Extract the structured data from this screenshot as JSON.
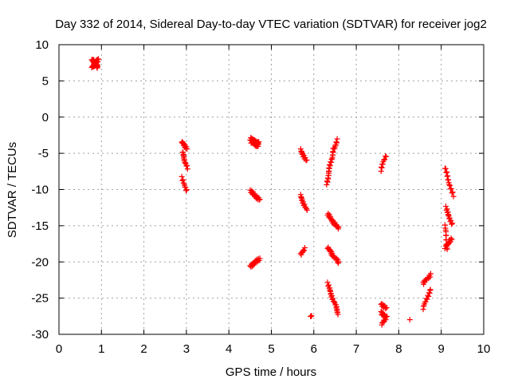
{
  "chart_data": {
    "type": "scatter",
    "title": "Day 332 of 2014, Sidereal Day-to-day VTEC variation (SDTVAR) for receiver jog2",
    "xlabel": "GPS time / hours",
    "ylabel": "SDTVAR / TECUs",
    "xlim": [
      0,
      10
    ],
    "ylim": [
      -30,
      10
    ],
    "xticks": [
      "0",
      "1",
      "2",
      "3",
      "4",
      "5",
      "6",
      "7",
      "8",
      "9",
      "10"
    ],
    "yticks": [
      "10",
      "5",
      "0",
      "-5",
      "-10",
      "-15",
      "-20",
      "-25",
      "-30"
    ],
    "grid": true,
    "marker": "+",
    "color": "#ff0000",
    "segments": [
      {
        "from": [
          0.78,
          7.9
        ],
        "to": [
          0.92,
          6.9
        ],
        "n": 30
      },
      {
        "from": [
          0.78,
          6.9
        ],
        "to": [
          0.92,
          7.9
        ],
        "n": 20
      },
      {
        "from": [
          2.88,
          -3.4
        ],
        "to": [
          3.02,
          -4.3
        ],
        "n": 12
      },
      {
        "from": [
          2.9,
          -4.8
        ],
        "to": [
          3.02,
          -7.0
        ],
        "n": 14
      },
      {
        "from": [
          2.88,
          -8.4
        ],
        "to": [
          3.02,
          -10.2
        ],
        "n": 10
      },
      {
        "from": [
          4.5,
          -3.0
        ],
        "to": [
          4.7,
          -3.6
        ],
        "n": 22
      },
      {
        "from": [
          4.52,
          -3.5
        ],
        "to": [
          4.7,
          -4.0
        ],
        "n": 12
      },
      {
        "from": [
          4.5,
          -10.2
        ],
        "to": [
          4.72,
          -11.4
        ],
        "n": 18
      },
      {
        "from": [
          4.5,
          -20.6
        ],
        "to": [
          4.72,
          -19.6
        ],
        "n": 18
      },
      {
        "from": [
          5.68,
          -4.5
        ],
        "to": [
          5.83,
          -6.0
        ],
        "n": 12
      },
      {
        "from": [
          5.68,
          -10.8
        ],
        "to": [
          5.83,
          -12.8
        ],
        "n": 14
      },
      {
        "from": [
          5.68,
          -19.0
        ],
        "to": [
          5.8,
          -18.2
        ],
        "n": 8
      },
      {
        "from": [
          5.93,
          -27.6
        ],
        "to": [
          5.96,
          -27.4
        ],
        "n": 3
      },
      {
        "from": [
          6.3,
          -9.2
        ],
        "to": [
          6.46,
          -4.5
        ],
        "n": 24
      },
      {
        "from": [
          6.46,
          -4.5
        ],
        "to": [
          6.56,
          -3.2
        ],
        "n": 8
      },
      {
        "from": [
          6.32,
          -13.4
        ],
        "to": [
          6.58,
          -15.4
        ],
        "n": 22
      },
      {
        "from": [
          6.32,
          -18.0
        ],
        "to": [
          6.58,
          -20.1
        ],
        "n": 22
      },
      {
        "from": [
          6.32,
          -23.0
        ],
        "to": [
          6.58,
          -27.2
        ],
        "n": 26
      },
      {
        "from": [
          7.58,
          -7.3
        ],
        "to": [
          7.7,
          -5.3
        ],
        "n": 10
      },
      {
        "from": [
          7.58,
          -25.8
        ],
        "to": [
          7.72,
          -26.4
        ],
        "n": 8
      },
      {
        "from": [
          7.58,
          -27.0
        ],
        "to": [
          7.72,
          -27.6
        ],
        "n": 10
      },
      {
        "from": [
          7.6,
          -28.6
        ],
        "to": [
          7.7,
          -27.8
        ],
        "n": 8
      },
      {
        "from": [
          8.25,
          -27.9
        ],
        "to": [
          8.26,
          -27.9
        ],
        "n": 1
      },
      {
        "from": [
          8.58,
          -23.0
        ],
        "to": [
          8.74,
          -21.8
        ],
        "n": 12
      },
      {
        "from": [
          8.58,
          -26.4
        ],
        "to": [
          8.74,
          -23.8
        ],
        "n": 14
      },
      {
        "from": [
          9.08,
          -7.0
        ],
        "to": [
          9.28,
          -10.8
        ],
        "n": 16
      },
      {
        "from": [
          9.1,
          -12.5
        ],
        "to": [
          9.26,
          -14.8
        ],
        "n": 14
      },
      {
        "from": [
          9.08,
          -15.0
        ],
        "to": [
          9.15,
          -18.3
        ],
        "n": 12
      },
      {
        "from": [
          9.08,
          -18.0
        ],
        "to": [
          9.26,
          -16.8
        ],
        "n": 12
      }
    ]
  }
}
